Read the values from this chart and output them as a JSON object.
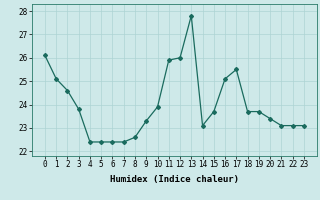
{
  "x": [
    0,
    1,
    2,
    3,
    4,
    5,
    6,
    7,
    8,
    9,
    10,
    11,
    12,
    13,
    14,
    15,
    16,
    17,
    18,
    19,
    20,
    21,
    22,
    23
  ],
  "y": [
    26.1,
    25.1,
    24.6,
    23.8,
    22.4,
    22.4,
    22.4,
    22.4,
    22.6,
    23.3,
    23.9,
    25.9,
    26.0,
    27.8,
    23.1,
    23.7,
    25.1,
    25.5,
    23.7,
    23.7,
    23.4,
    23.1,
    23.1,
    23.1
  ],
  "xlabel": "Humidex (Indice chaleur)",
  "ylim": [
    21.8,
    28.3
  ],
  "yticks": [
    22,
    23,
    24,
    25,
    26,
    27,
    28
  ],
  "xticks": [
    0,
    1,
    2,
    3,
    4,
    5,
    6,
    7,
    8,
    9,
    10,
    11,
    12,
    13,
    14,
    15,
    16,
    17,
    18,
    19,
    20,
    21,
    22,
    23
  ],
  "line_color": "#1a6b5e",
  "marker": "D",
  "marker_size": 2.0,
  "bg_color": "#cee9e9",
  "grid_color": "#add4d4",
  "label_fontsize": 6.5,
  "tick_fontsize": 5.5
}
